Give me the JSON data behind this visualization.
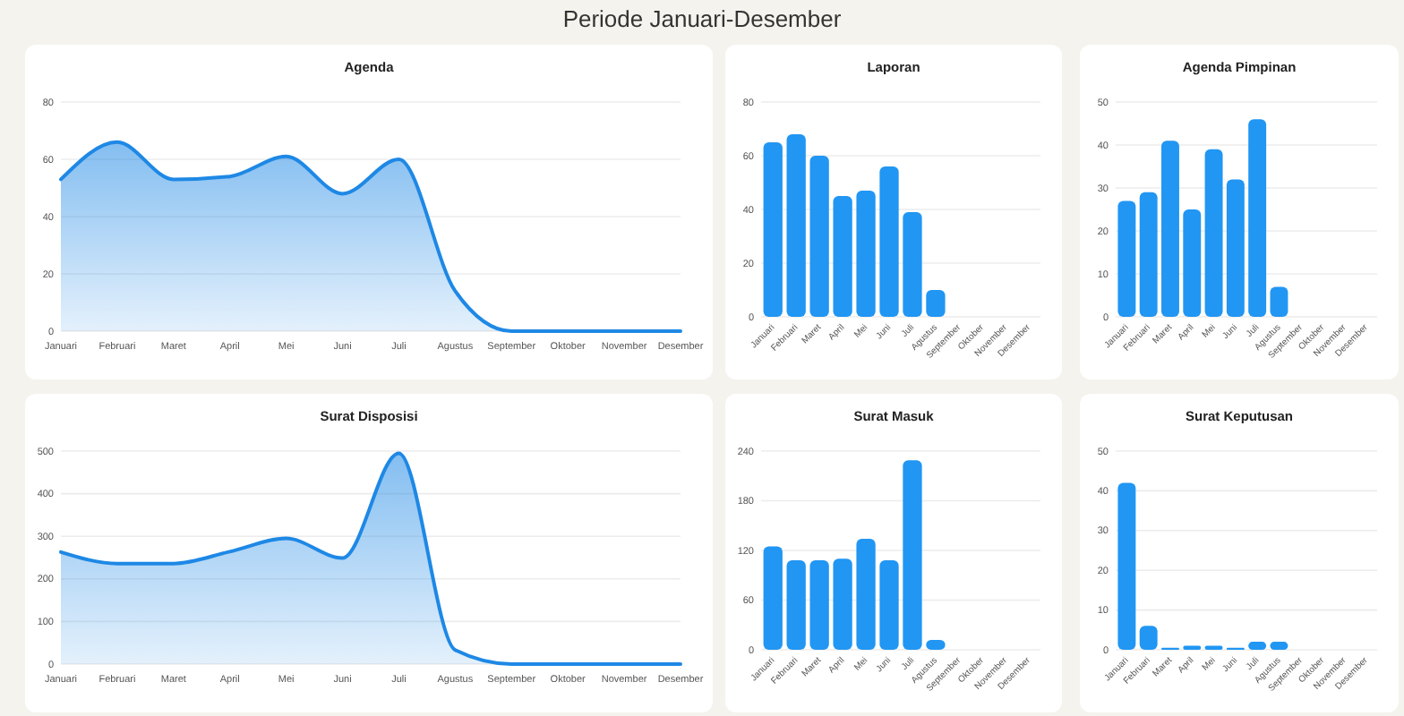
{
  "chart_data": [
    {
      "type": "area",
      "title": "Agenda",
      "annotations": [
        "Periode Januari-Desember"
      ],
      "categories": [
        "Januari",
        "Februari",
        "Maret",
        "April",
        "Mei",
        "Juni",
        "Juli",
        "Agustus",
        "September",
        "Oktober",
        "November",
        "Desember"
      ],
      "values": [
        53,
        66,
        53,
        54,
        61,
        48,
        60,
        14,
        0,
        0,
        0,
        0
      ],
      "color": "#1e88e5",
      "ylim": [
        0,
        80
      ],
      "yticks": [
        0,
        20,
        40,
        60,
        80
      ],
      "grid": "y"
    },
    {
      "type": "bar",
      "title": "Laporan",
      "categories": [
        "Januari",
        "Februari",
        "Maret",
        "April",
        "Mei",
        "Juni",
        "Juli",
        "Agustus",
        "September",
        "Oktober",
        "November",
        "Desember"
      ],
      "values": [
        65,
        68,
        60,
        45,
        47,
        56,
        39,
        10,
        0,
        0,
        0,
        0
      ],
      "color": "#2196f3",
      "ylim": [
        0,
        80
      ],
      "yticks": [
        0,
        20,
        40,
        60,
        80
      ],
      "grid": "y"
    },
    {
      "type": "bar",
      "title": "Agenda Pimpinan",
      "categories": [
        "Januari",
        "Februari",
        "Maret",
        "April",
        "Mei",
        "Juni",
        "Juli",
        "Agustus",
        "September",
        "Oktober",
        "November",
        "Desember"
      ],
      "values": [
        27,
        29,
        41,
        25,
        39,
        32,
        46,
        7,
        0,
        0,
        0,
        0
      ],
      "color": "#2196f3",
      "ylim": [
        0,
        50
      ],
      "yticks": [
        0,
        10,
        20,
        30,
        40,
        50
      ],
      "grid": "y"
    },
    {
      "type": "area",
      "title": "Surat Disposisi",
      "categories": [
        "Januari",
        "Februari",
        "Maret",
        "April",
        "Mei",
        "Juni",
        "Juli",
        "Agustus",
        "September",
        "Oktober",
        "November",
        "Desember"
      ],
      "values": [
        263,
        236,
        236,
        264,
        295,
        249,
        495,
        33,
        0,
        0,
        0,
        0
      ],
      "color": "#1e88e5",
      "ylim": [
        0,
        500
      ],
      "yticks": [
        0,
        100,
        200,
        300,
        400,
        500
      ],
      "grid": "y"
    },
    {
      "type": "bar",
      "title": "Surat Masuk",
      "categories": [
        "Januari",
        "Februari",
        "Maret",
        "April",
        "Mei",
        "Juni",
        "Juli",
        "Agustus",
        "September",
        "Oktober",
        "November",
        "Desember"
      ],
      "values": [
        125,
        108,
        108,
        110,
        134,
        108,
        229,
        12,
        0,
        0,
        0,
        0
      ],
      "color": "#2196f3",
      "ylim": [
        0,
        240
      ],
      "yticks": [
        0,
        60,
        120,
        180,
        240
      ],
      "grid": "y"
    },
    {
      "type": "bar",
      "title": "Surat Keputusan",
      "categories": [
        "Januari",
        "Februari",
        "Maret",
        "April",
        "Mei",
        "Juni",
        "Juli",
        "Agustus",
        "September",
        "Oktober",
        "November",
        "Desember"
      ],
      "values": [
        42,
        6,
        0.5,
        1,
        1,
        0.5,
        2,
        2,
        0,
        0,
        0,
        0
      ],
      "color": "#2196f3",
      "ylim": [
        0,
        50
      ],
      "yticks": [
        0,
        10,
        20,
        30,
        40,
        50
      ],
      "grid": "y"
    }
  ]
}
